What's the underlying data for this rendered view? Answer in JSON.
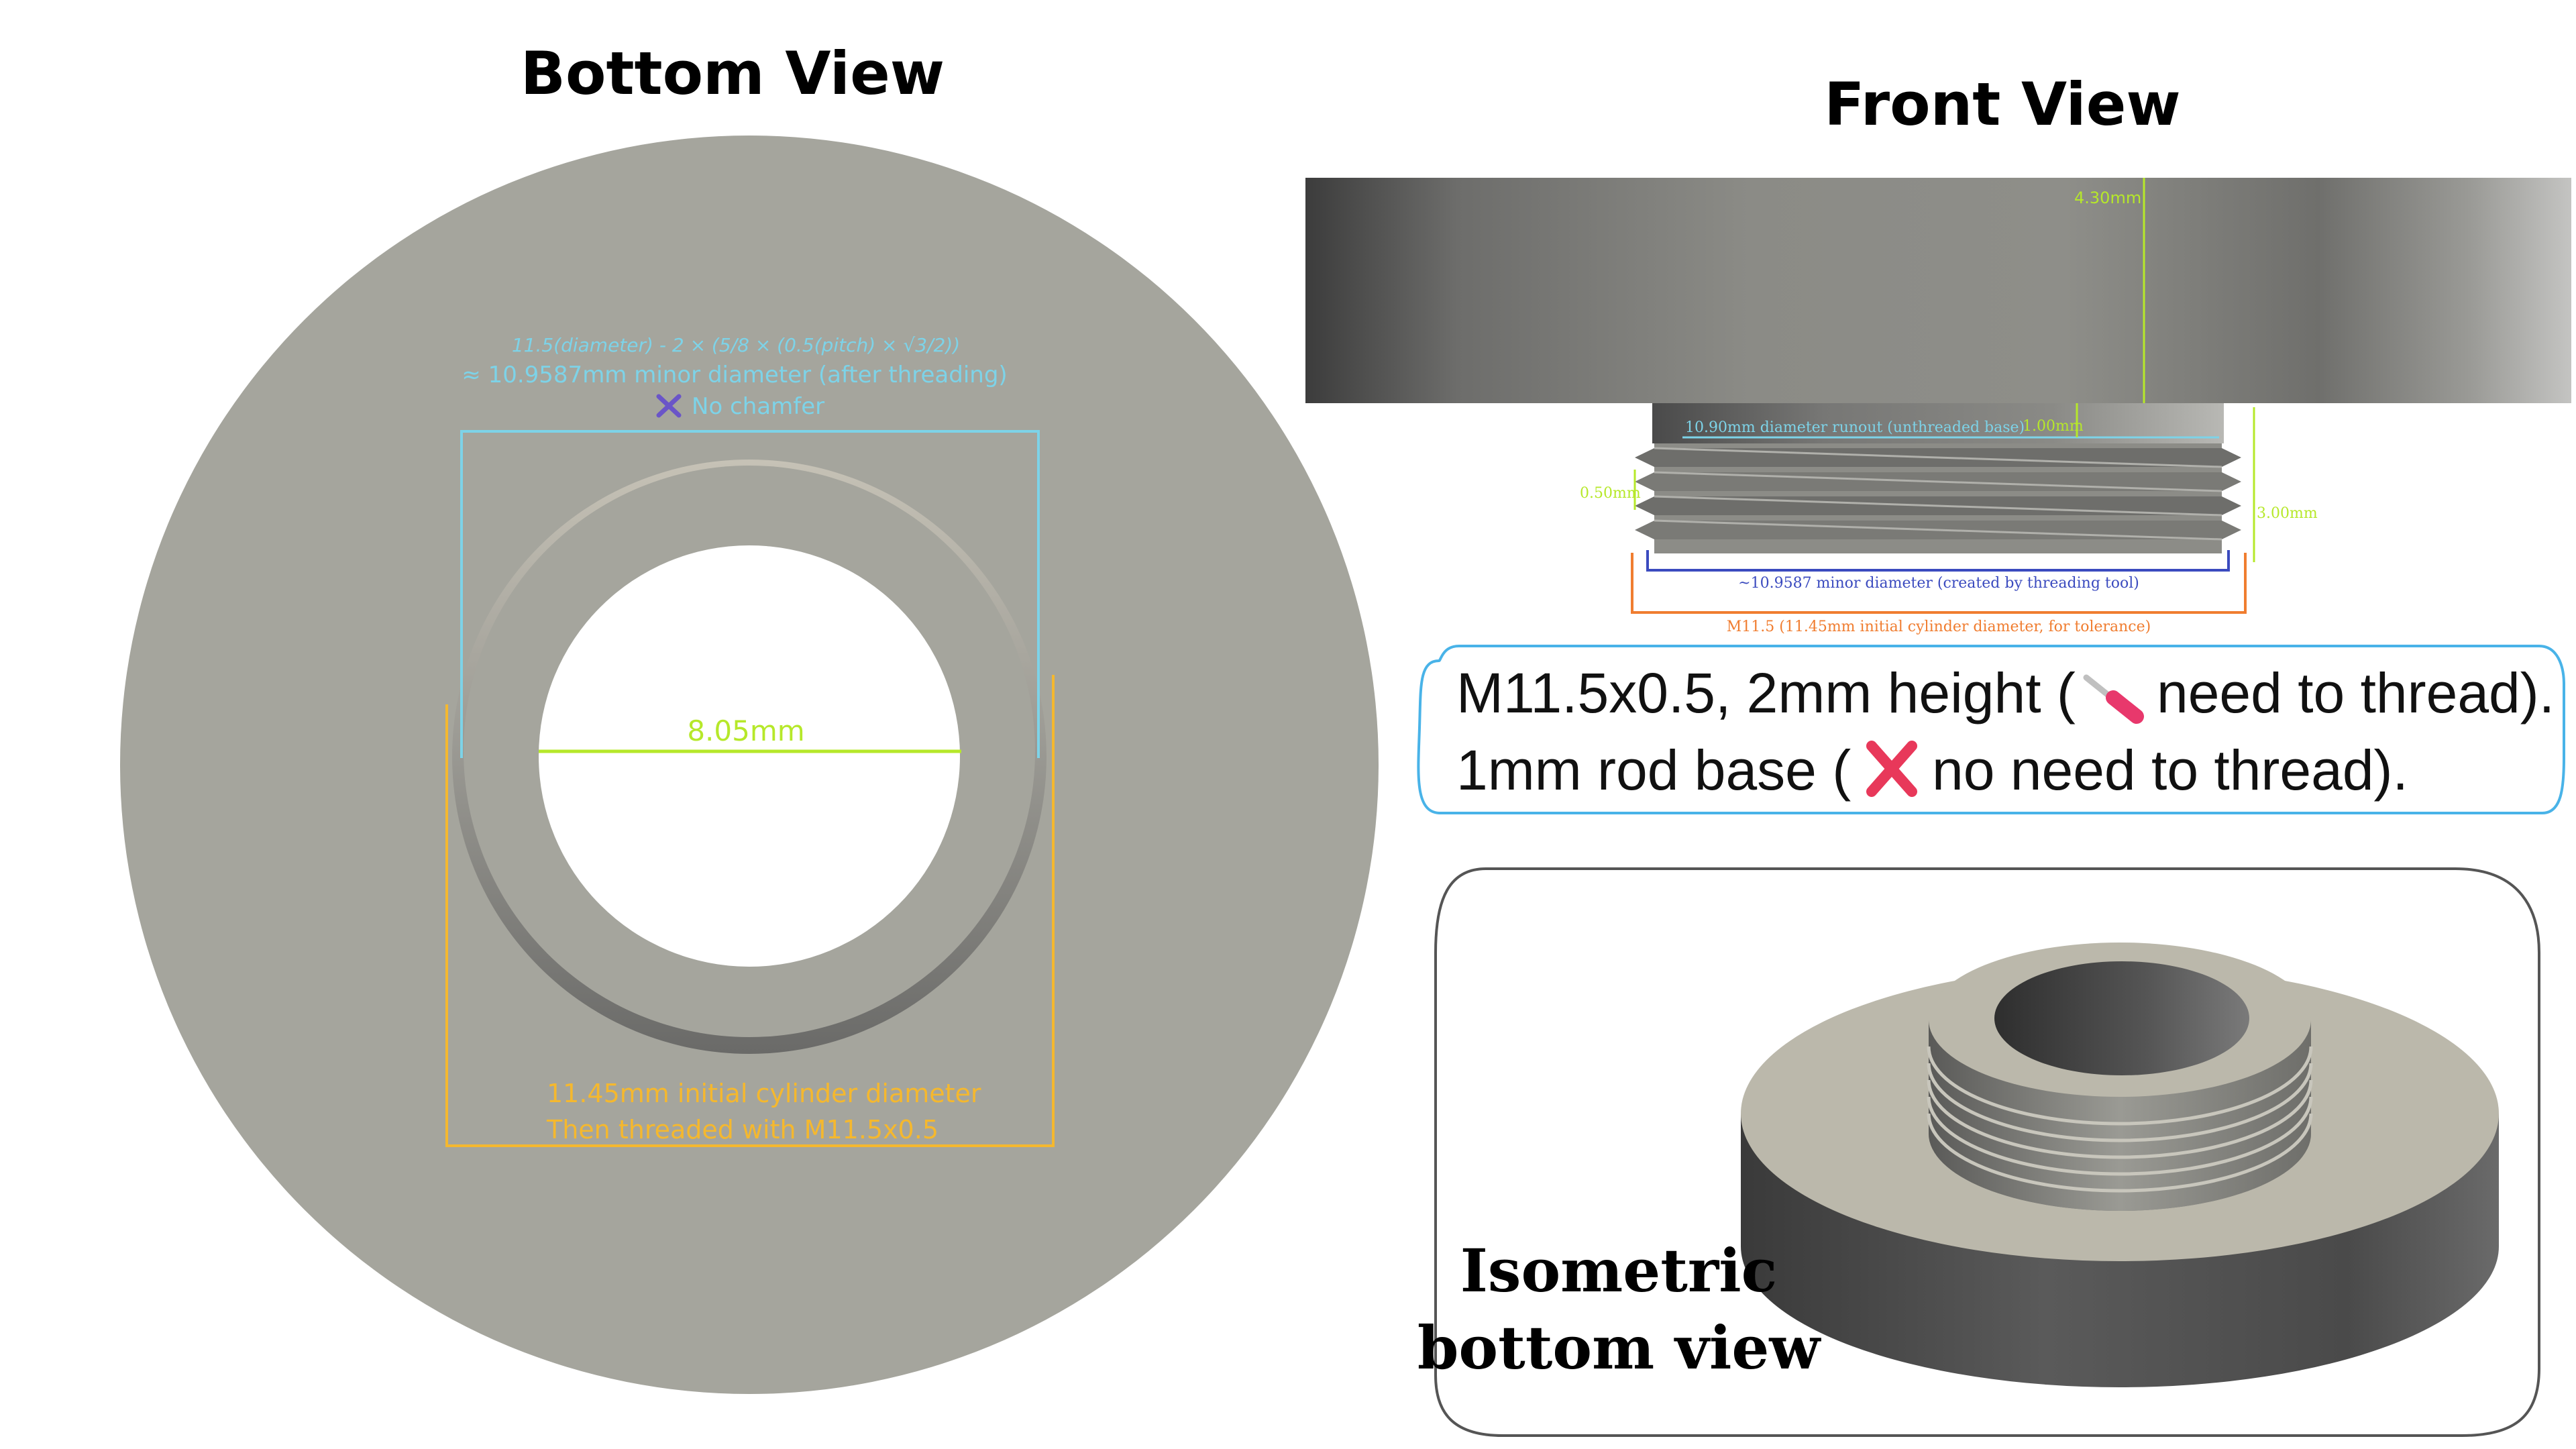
{
  "bottom_view": {
    "title": "Bottom View",
    "formula": "11.5(diameter) - 2 × (5/8 × (0.5(pitch) × √3/2))",
    "minor_diameter_note": "≈ 10.9587mm minor diameter (after threading)",
    "chamfer_note": "No chamfer",
    "hole_diameter": "8.05mm",
    "initial_diameter_note": "11.45mm initial cylinder diameter",
    "threaded_note": "Then threaded with M11.5x0.5"
  },
  "front_view": {
    "title": "Front View",
    "dim_height_top": "4.30mm",
    "dim_runout_label": "10.90mm diameter runout (unthreaded base)",
    "dim_runout_height": "1.00mm",
    "dim_pitch": "0.50mm",
    "dim_thread_height": "3.00mm",
    "dim_minor_label": "~10.9587 minor diameter (created by threading tool)",
    "dim_major_label": "M11.5 (11.45mm initial cylinder diameter, for tolerance)"
  },
  "callout": {
    "line1_pre": "M11.5x0.5, 2mm height (",
    "line1_post": "need to thread).",
    "line2_pre": "1mm rod base (",
    "line2_post": "no need to thread)."
  },
  "isometric": {
    "title_line1": "Isometric",
    "title_line2": "bottom view"
  },
  "colors": {
    "cyan_dim": "#7dd3e8",
    "yellow_dim": "#f5b82e",
    "lime_dim": "#b6e82a",
    "blue_dim": "#3b4bbf",
    "orange_dim": "#f07d30",
    "purple_x": "#6a55c8",
    "red_x": "#e8385a",
    "callout_border": "#49b3e8"
  }
}
